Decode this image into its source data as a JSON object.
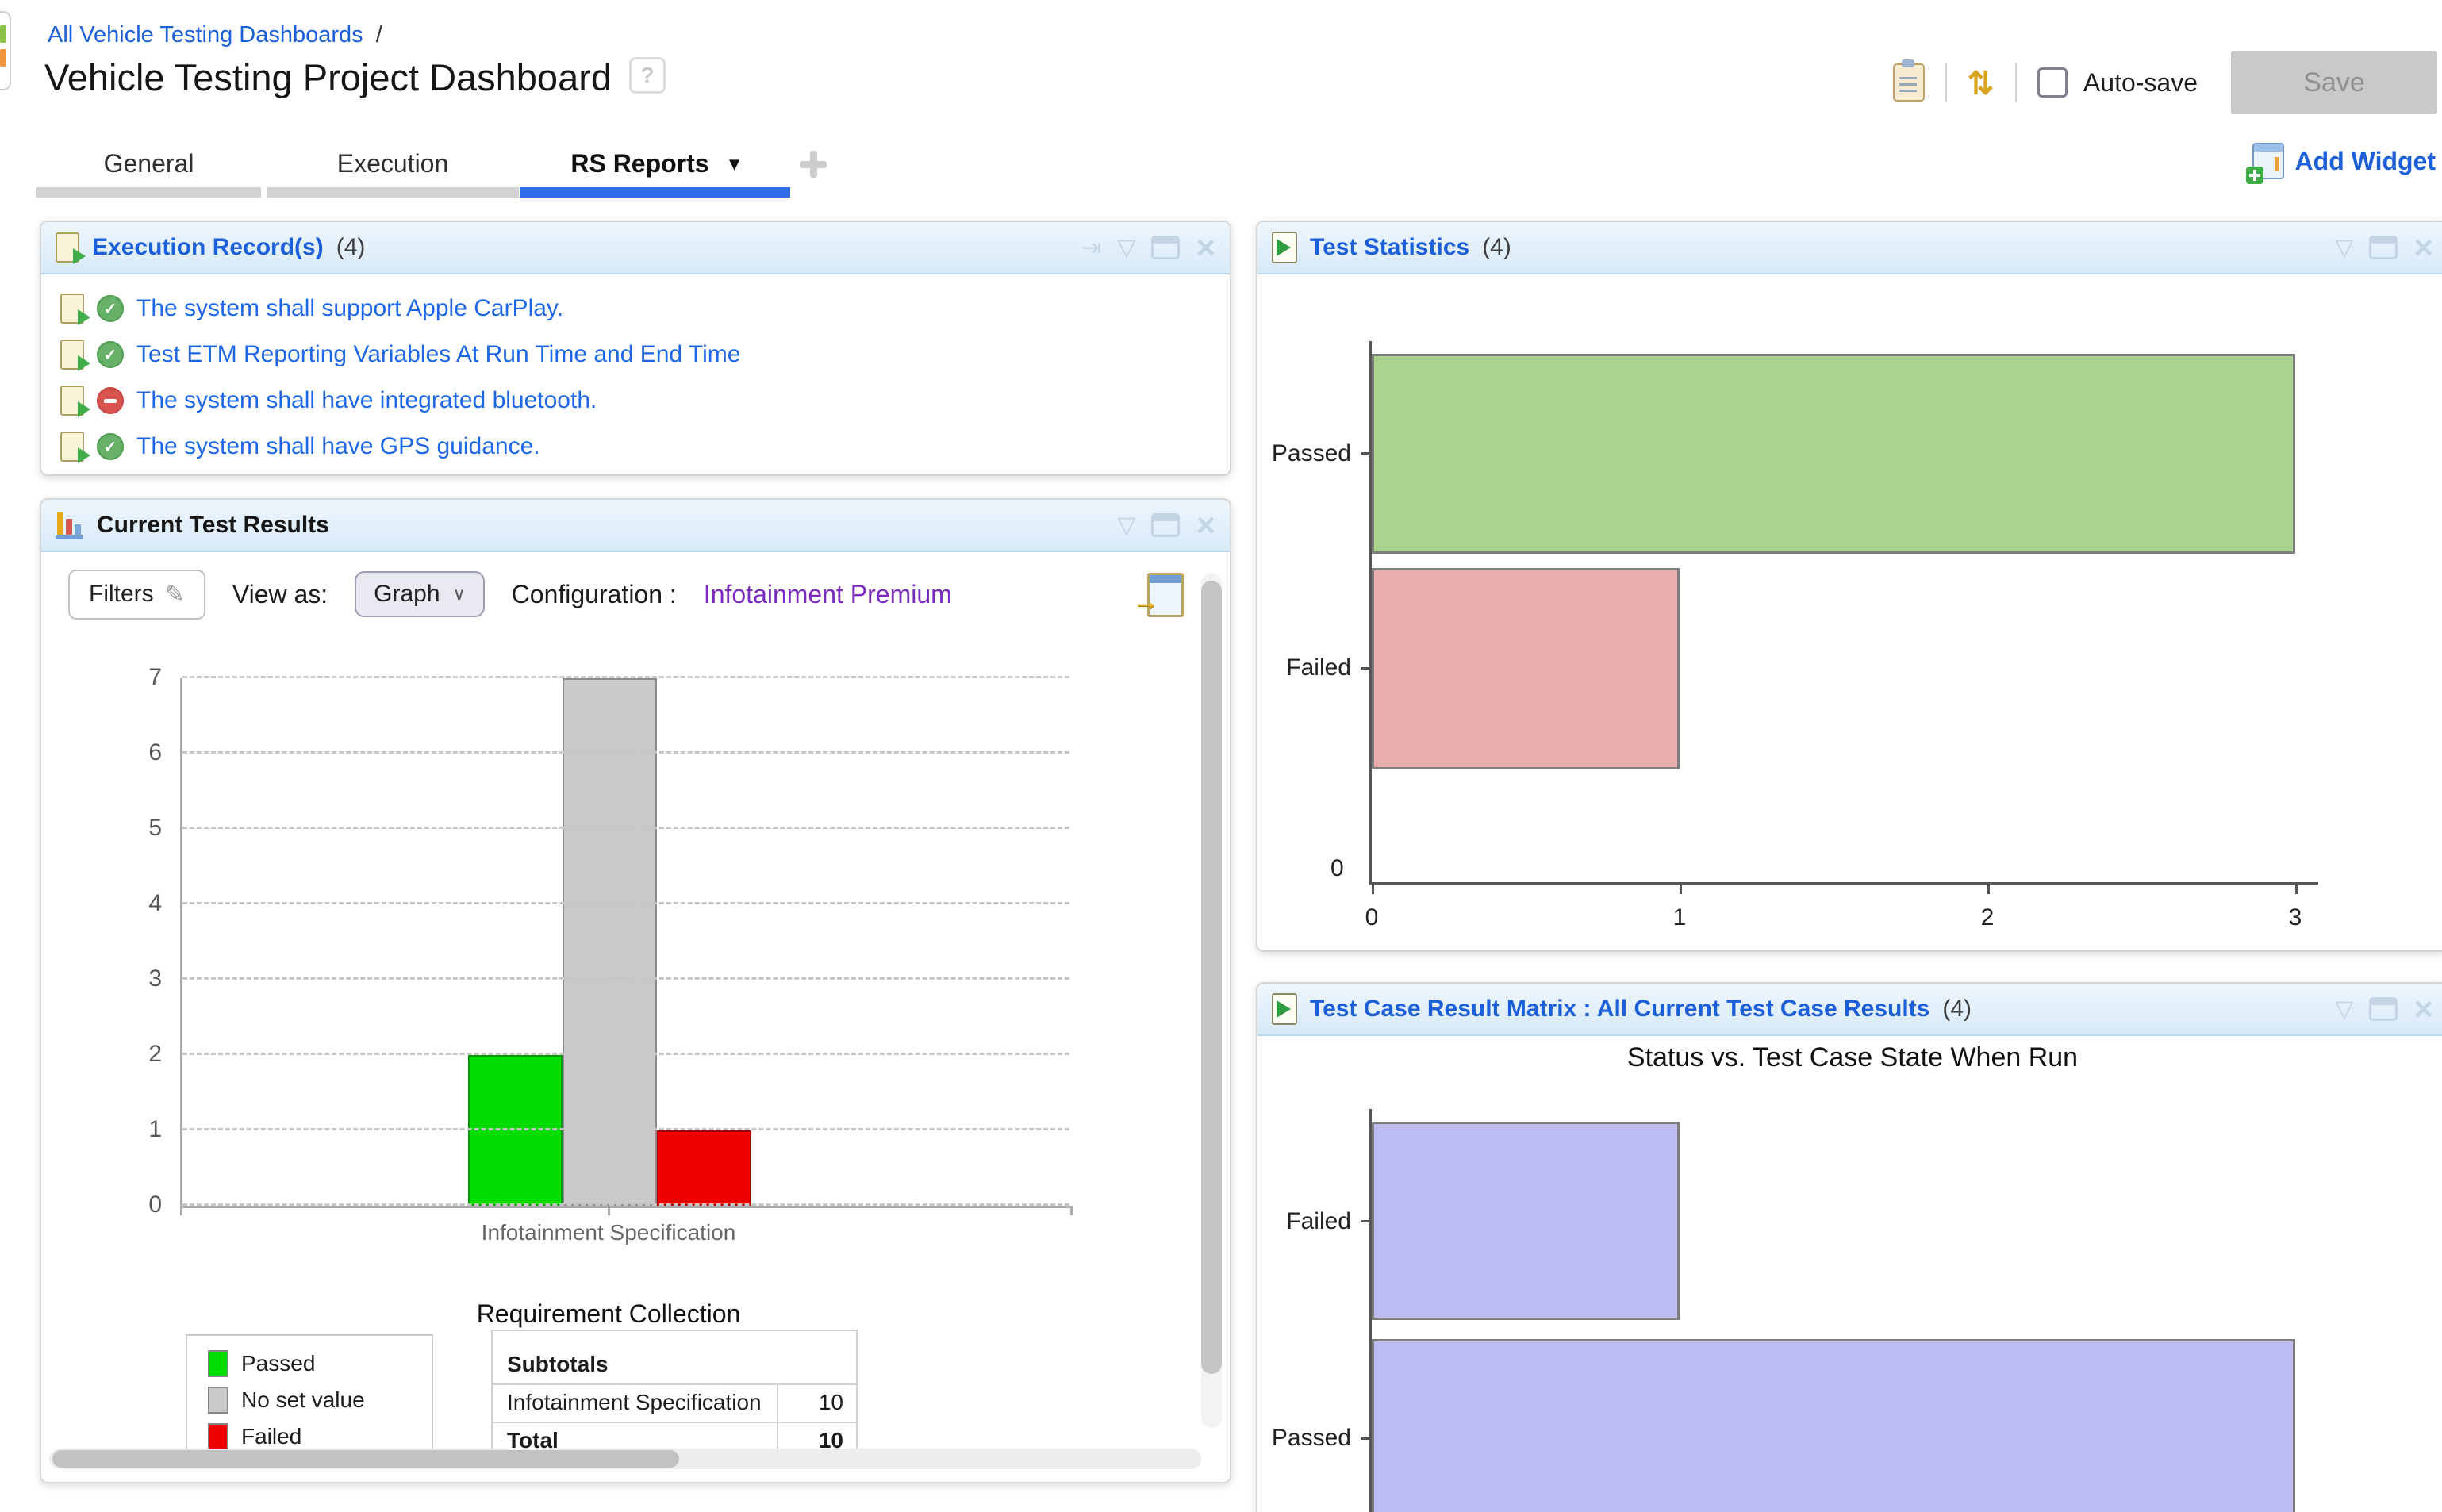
{
  "icons": {
    "help": "?",
    "caret_down": "▾",
    "menu": "▽",
    "close": "×",
    "pin": "⇥",
    "pencil": "✎",
    "sync": "⇄",
    "export": "→",
    "check": "✓",
    "select_caret": "∨"
  },
  "page": {
    "breadcrumb": "All Vehicle Testing Dashboards",
    "breadcrumb_sep": "/",
    "title": "Vehicle Testing Project Dashboard",
    "autosave": "Auto-save",
    "save": "Save",
    "add_widget": "Add Widget"
  },
  "tabs": {
    "general": "General",
    "execution": "Execution",
    "rs_reports": "RS Reports"
  },
  "widgets": {
    "execution_records": {
      "title": "Execution Record(s)",
      "count": "(4)",
      "items": [
        {
          "label": "The system shall support Apple CarPlay.",
          "status": "passed"
        },
        {
          "label": "Test ETM Reporting Variables At Run Time and End Time",
          "status": "passed"
        },
        {
          "label": "The system shall have integrated bluetooth.",
          "status": "blocked"
        },
        {
          "label": "The system shall have GPS guidance.",
          "status": "passed"
        }
      ]
    },
    "current_test_results": {
      "title": "Current Test Results",
      "toolbar": {
        "filters": "Filters",
        "view_as": "View as:",
        "view_value": "Graph",
        "config_label": "Configuration :",
        "config_value": "Infotainment Premium"
      },
      "section_title": "Requirement Collection",
      "chart_data": {
        "type": "bar",
        "categories": [
          "Infotainment Specification"
        ],
        "series": [
          {
            "name": "Passed",
            "color": "#00dd00",
            "values": [
              2
            ]
          },
          {
            "name": "No set value",
            "color": "#c9c9c9",
            "values": [
              7
            ]
          },
          {
            "name": "Failed",
            "color": "#ee0000",
            "values": [
              1
            ]
          }
        ],
        "ylim": [
          0,
          7
        ],
        "yticks": [
          0,
          1,
          2,
          3,
          4,
          5,
          6,
          7
        ],
        "grid": true,
        "legend_position": "bottom-left"
      },
      "legend": [
        {
          "label": "Passed",
          "color": "#00dd00"
        },
        {
          "label": "No set value",
          "color": "#c9c9c9"
        },
        {
          "label": "Failed",
          "color": "#ee0000"
        }
      ],
      "subtotals": {
        "header": "Subtotals",
        "rows": [
          {
            "label": "Infotainment Specification",
            "value": "10"
          },
          {
            "label": "Total",
            "value": "10"
          }
        ]
      }
    },
    "test_statistics": {
      "title": "Test Statistics",
      "count": "(4)",
      "chart_data": {
        "type": "bar",
        "orientation": "horizontal",
        "categories": [
          "Passed",
          "Failed"
        ],
        "values": [
          3,
          1
        ],
        "colors": [
          "#a9d38f",
          "#e9adad"
        ],
        "xlim": [
          0,
          3
        ],
        "xticks": [
          0,
          1,
          2,
          3
        ],
        "origin_label": "0"
      }
    },
    "result_matrix": {
      "title": "Test Case Result Matrix : All Current Test Case Results",
      "count": "(4)",
      "chart_title": "Status vs. Test Case State When Run",
      "chart_data": {
        "type": "bar",
        "orientation": "horizontal",
        "categories": [
          "Failed",
          "Passed"
        ],
        "values": [
          1,
          3
        ],
        "colors": [
          "#bcbcf2",
          "#bcbcf2"
        ],
        "xlim": [
          0,
          3
        ]
      }
    }
  }
}
